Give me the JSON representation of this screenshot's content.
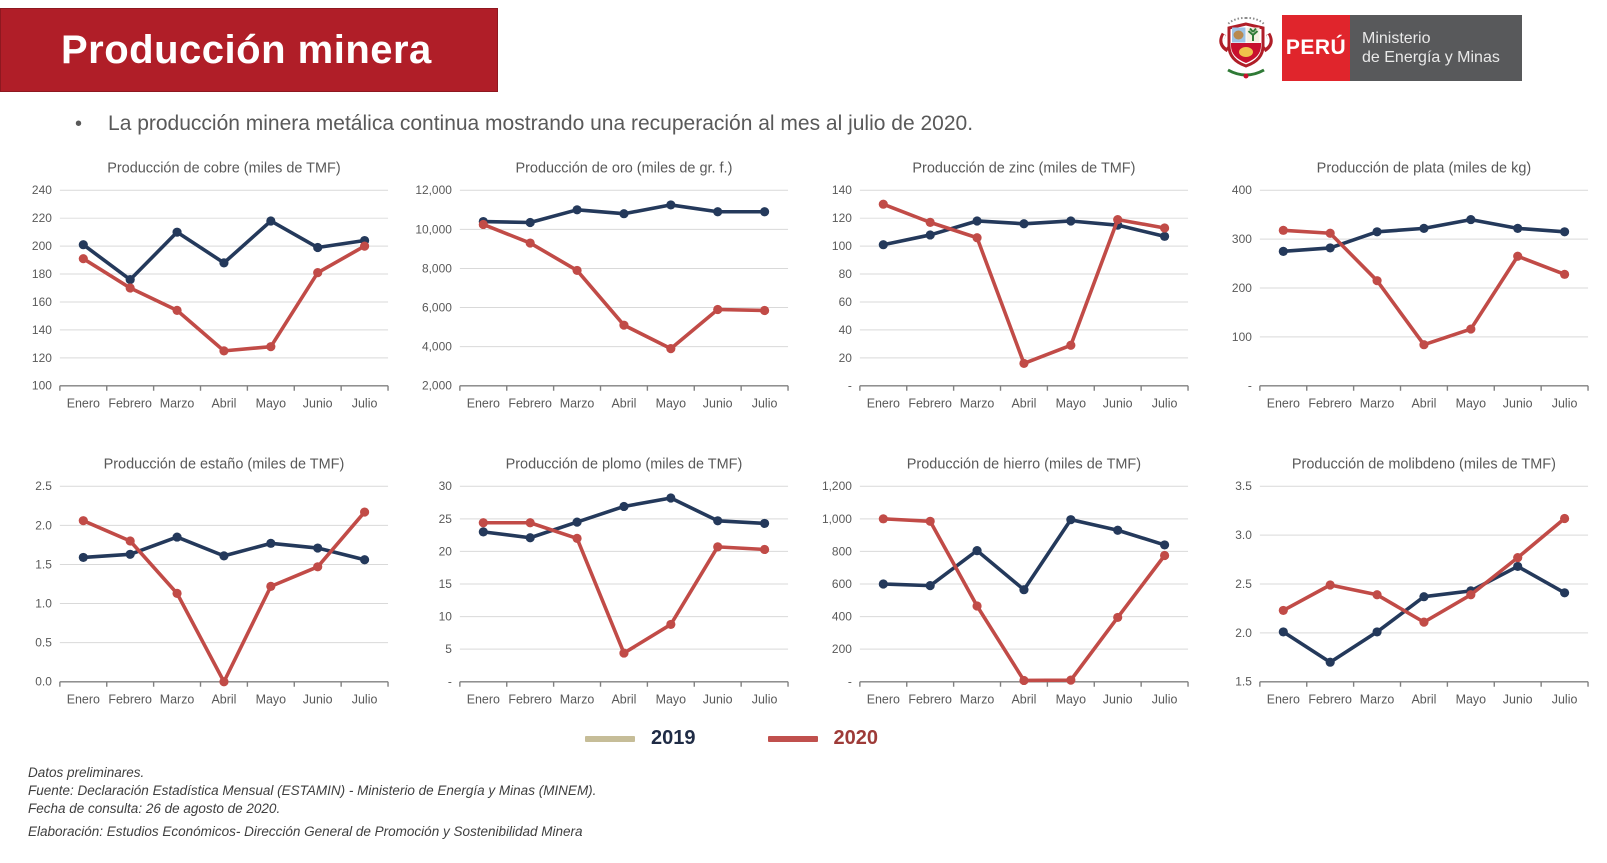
{
  "header": {
    "title": "Producción minera",
    "bullet": "La producción minera metálica continua mostrando una recuperación al mes al julio de 2020.",
    "logo": {
      "peru_label": "PERÚ",
      "ministry_line1": "Ministerio",
      "ministry_line2": "de Energía y Minas"
    }
  },
  "colors": {
    "banner_red": "#B01E28",
    "peru_box_red": "#E0252C",
    "ministry_gray": "#58595B",
    "series": {
      "2019": "#24395B",
      "2020": "#C14B47"
    },
    "grid_line": "#D9D9D9",
    "axis_line": "#808080",
    "axis_text": "#595959",
    "title_text": "#595959",
    "legend_2019_swatch": "#C6BD98",
    "legend_2019_text": "#1F2B45",
    "legend_2020_swatch": "#C0504D",
    "legend_2020_text": "#9E3B38"
  },
  "legend": {
    "items": [
      {
        "label": "2019",
        "swatch": "#C6BD98",
        "text_color": "#1F2B45"
      },
      {
        "label": "2020",
        "swatch": "#C0504D",
        "text_color": "#9E3B38"
      }
    ]
  },
  "chart_data": [
    {
      "type": "line",
      "title": "Producción de cobre (miles de TMF)",
      "categories": [
        "Enero",
        "Febrero",
        "Marzo",
        "Abril",
        "Mayo",
        "Junio",
        "Julio"
      ],
      "series": [
        {
          "name": "2019",
          "values": [
            201,
            176,
            210,
            188,
            218,
            199,
            204
          ]
        },
        {
          "name": "2020",
          "values": [
            191,
            170,
            154,
            125,
            128,
            181,
            200
          ]
        }
      ],
      "ylim": [
        100,
        240
      ],
      "ystep": 20,
      "yformat": "int",
      "zero_dash": false,
      "legend_position": "none",
      "grid": true
    },
    {
      "type": "line",
      "title": "Producción de oro (miles de gr. f.)",
      "categories": [
        "Enero",
        "Febrero",
        "Marzo",
        "Abril",
        "Mayo",
        "Junio",
        "Julio"
      ],
      "series": [
        {
          "name": "2019",
          "values": [
            10400,
            10350,
            11000,
            10800,
            11250,
            10900,
            10900
          ]
        },
        {
          "name": "2020",
          "values": [
            10250,
            9300,
            7900,
            5100,
            3900,
            5900,
            5850
          ]
        }
      ],
      "ylim": [
        2000,
        12000
      ],
      "ystep": 2000,
      "yformat": "thousands",
      "zero_dash": false,
      "legend_position": "none",
      "grid": true
    },
    {
      "type": "line",
      "title": "Producción de zinc (miles de TMF)",
      "categories": [
        "Enero",
        "Febrero",
        "Marzo",
        "Abril",
        "Mayo",
        "Junio",
        "Julio"
      ],
      "series": [
        {
          "name": "2019",
          "values": [
            101,
            108,
            118,
            116,
            118,
            115,
            107
          ]
        },
        {
          "name": "2020",
          "values": [
            130,
            117,
            106,
            16,
            29,
            119,
            113
          ]
        }
      ],
      "ylim": [
        0,
        140
      ],
      "ystep": 20,
      "yformat": "int",
      "zero_dash": true,
      "legend_position": "none",
      "grid": true
    },
    {
      "type": "line",
      "title": "Producción de plata (miles de kg)",
      "categories": [
        "Enero",
        "Febrero",
        "Marzo",
        "Abril",
        "Mayo",
        "Junio",
        "Julio"
      ],
      "series": [
        {
          "name": "2019",
          "values": [
            275,
            282,
            315,
            322,
            340,
            322,
            315
          ]
        },
        {
          "name": "2020",
          "values": [
            318,
            312,
            215,
            84,
            116,
            265,
            228
          ]
        }
      ],
      "ylim": [
        0,
        400
      ],
      "ystep": 100,
      "yformat": "int",
      "zero_dash": true,
      "legend_position": "none",
      "grid": true
    },
    {
      "type": "line",
      "title": "Producción de estaño (miles de TMF)",
      "categories": [
        "Enero",
        "Febrero",
        "Marzo",
        "Abril",
        "Mayo",
        "Junio",
        "Julio"
      ],
      "series": [
        {
          "name": "2019",
          "values": [
            1.59,
            1.63,
            1.85,
            1.61,
            1.77,
            1.71,
            1.56
          ]
        },
        {
          "name": "2020",
          "values": [
            2.06,
            1.8,
            1.13,
            0.0,
            1.22,
            1.47,
            2.17
          ]
        }
      ],
      "ylim": [
        0,
        2.5
      ],
      "ystep": 0.5,
      "yformat": "dec1",
      "zero_dash": false,
      "legend_position": "none",
      "grid": true
    },
    {
      "type": "line",
      "title": "Producción de plomo (miles de TMF)",
      "categories": [
        "Enero",
        "Febrero",
        "Marzo",
        "Abril",
        "Mayo",
        "Junio",
        "Julio"
      ],
      "series": [
        {
          "name": "2019",
          "values": [
            23.0,
            22.1,
            24.5,
            26.9,
            28.2,
            24.7,
            24.3
          ]
        },
        {
          "name": "2020",
          "values": [
            24.4,
            24.4,
            22.0,
            4.4,
            8.8,
            20.7,
            20.3
          ]
        }
      ],
      "ylim": [
        0,
        30
      ],
      "ystep": 5,
      "yformat": "int",
      "zero_dash": true,
      "legend_position": "none",
      "grid": true
    },
    {
      "type": "line",
      "title": "Producción de hierro (miles de TMF)",
      "categories": [
        "Enero",
        "Febrero",
        "Marzo",
        "Abril",
        "Mayo",
        "Junio",
        "Julio"
      ],
      "series": [
        {
          "name": "2019",
          "values": [
            600,
            590,
            805,
            565,
            995,
            930,
            840
          ]
        },
        {
          "name": "2020",
          "values": [
            1000,
            985,
            465,
            8,
            10,
            395,
            775
          ]
        }
      ],
      "ylim": [
        0,
        1200
      ],
      "ystep": 200,
      "yformat": "thousands",
      "zero_dash": true,
      "legend_position": "none",
      "grid": true
    },
    {
      "type": "line",
      "title": "Producción de molibdeno (miles de TMF)",
      "categories": [
        "Enero",
        "Febrero",
        "Marzo",
        "Abril",
        "Mayo",
        "Junio",
        "Julio"
      ],
      "series": [
        {
          "name": "2019",
          "values": [
            2.01,
            1.7,
            2.01,
            2.37,
            2.43,
            2.68,
            2.41
          ]
        },
        {
          "name": "2020",
          "values": [
            2.23,
            2.49,
            2.39,
            2.11,
            2.39,
            2.77,
            3.17
          ]
        }
      ],
      "ylim": [
        1.5,
        3.5
      ],
      "ystep": 0.5,
      "yformat": "dec1",
      "zero_dash": false,
      "legend_position": "none",
      "grid": true
    }
  ],
  "footer": {
    "lines": [
      "Datos preliminares.",
      "Fuente: Declaración Estadística Mensual (ESTAMIN) - Ministerio de Energía y Minas (MINEM).",
      "Fecha de consulta: 26 de agosto de 2020.",
      "Elaboración: Estudios Económicos- Dirección General de Promoción y Sostenibilidad Minera"
    ]
  }
}
